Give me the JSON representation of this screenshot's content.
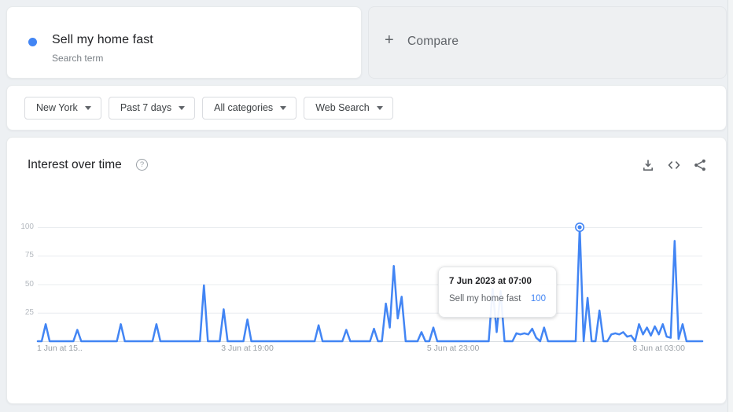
{
  "page": {
    "bg": "#edf0f3"
  },
  "term_card": {
    "term": "Sell my home fast",
    "subtitle": "Search term",
    "dot_color": "#4285f4"
  },
  "compare_card": {
    "plus": "+",
    "label": "Compare"
  },
  "filters": [
    {
      "label": "New York"
    },
    {
      "label": "Past 7 days"
    },
    {
      "label": "All categories"
    },
    {
      "label": "Web Search"
    }
  ],
  "chart_section": {
    "title": "Interest over time",
    "help": "?",
    "icon_names": [
      "download-icon",
      "embed-icon",
      "share-icon"
    ]
  },
  "tooltip": {
    "title": "7 Jun 2023 at 07:00",
    "series": "Sell my home fast",
    "value": "100"
  },
  "chart_data": {
    "type": "line",
    "title": "Interest over time",
    "grid": true,
    "ylim": [
      0,
      100
    ],
    "y_ticks": [
      25,
      50,
      75,
      100
    ],
    "hours_total": 168,
    "x_ticks": [
      {
        "hour": 1,
        "label": "1 Jun at 15.."
      },
      {
        "hour": 53,
        "label": "3 Jun at 19:00"
      },
      {
        "hour": 105,
        "label": "5 Jun at 23:00"
      },
      {
        "hour": 157,
        "label": "8 Jun at 03:00"
      }
    ],
    "highlight": {
      "hour": 137,
      "value": 100,
      "label": "7 Jun 2023 at 07:00"
    },
    "series": [
      {
        "name": "Sell my home fast",
        "color": "#4285f4",
        "values_hourly": [
          0,
          0,
          15,
          0,
          0,
          0,
          0,
          0,
          0,
          0,
          10,
          0,
          0,
          0,
          0,
          0,
          0,
          0,
          0,
          0,
          0,
          15,
          0,
          0,
          0,
          0,
          0,
          0,
          0,
          0,
          15,
          0,
          0,
          0,
          0,
          0,
          0,
          0,
          0,
          0,
          0,
          0,
          49,
          0,
          0,
          0,
          0,
          28,
          0,
          0,
          0,
          0,
          0,
          19,
          0,
          0,
          0,
          0,
          0,
          0,
          0,
          0,
          0,
          0,
          0,
          0,
          0,
          0,
          0,
          0,
          0,
          14,
          0,
          0,
          0,
          0,
          0,
          0,
          10,
          0,
          0,
          0,
          0,
          0,
          0,
          11,
          0,
          0,
          33,
          12,
          66,
          20,
          39,
          0,
          0,
          0,
          0,
          8,
          0,
          0,
          12,
          0,
          0,
          0,
          0,
          0,
          0,
          0,
          0,
          0,
          0,
          0,
          0,
          0,
          0,
          46,
          8,
          44,
          0,
          0,
          0,
          7,
          6,
          7,
          6,
          11,
          3,
          0,
          12,
          0,
          0,
          0,
          0,
          0,
          0,
          0,
          0,
          100,
          0,
          38,
          0,
          0,
          27,
          0,
          0,
          6,
          7,
          6,
          8,
          4,
          5,
          0,
          15,
          6,
          12,
          5,
          13,
          6,
          15,
          4,
          3,
          88,
          2,
          15,
          0,
          0,
          0,
          0,
          0
        ]
      }
    ]
  }
}
